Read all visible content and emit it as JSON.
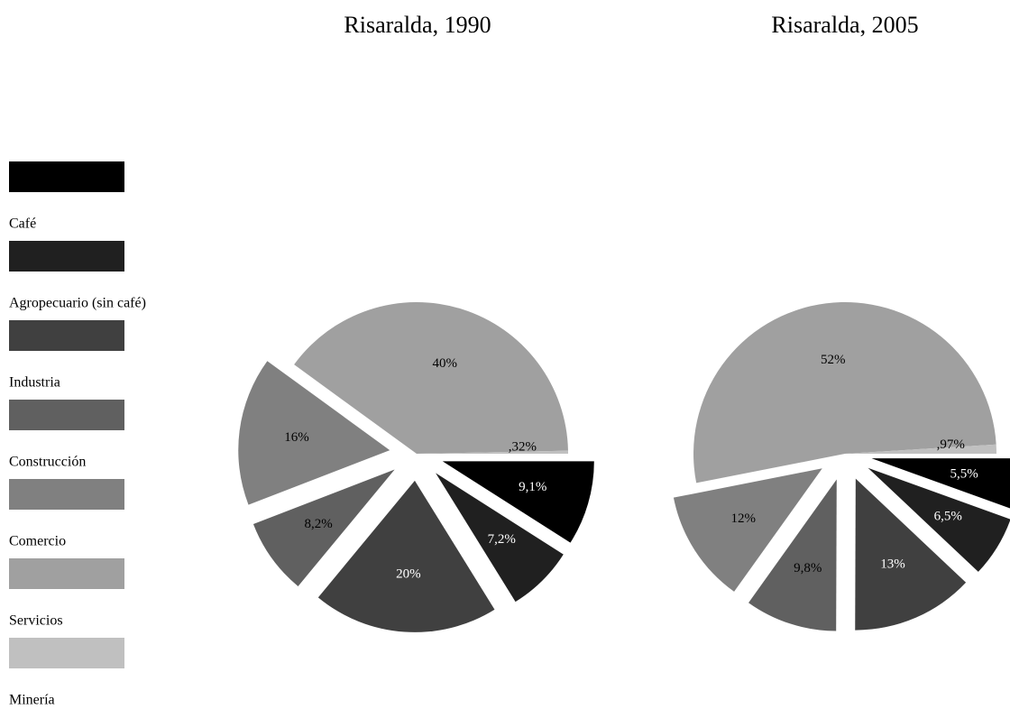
{
  "chart_data": [
    {
      "type": "pie",
      "title": "Risaralda, 1990",
      "categories": [
        "Café",
        "Agropecuario (sin café)",
        "Industria",
        "Construcción",
        "Comercio",
        "Servicios",
        "Minería"
      ],
      "values": [
        9.1,
        7.2,
        20,
        8.2,
        16,
        40,
        0.32
      ],
      "value_labels": [
        "9,1%",
        "7,2%",
        "20%",
        "8,2%",
        "16%",
        "40%",
        ",32%"
      ],
      "colors": [
        "#000000",
        "#202020",
        "#404040",
        "#606060",
        "#808080",
        "#a0a0a0",
        "#c0c0c0"
      ]
    },
    {
      "type": "pie",
      "title": "Risaralda, 2005",
      "categories": [
        "Café",
        "Agropecuario (sin café)",
        "Industria",
        "Construcción",
        "Comercio",
        "Servicios",
        "Minería"
      ],
      "values": [
        5.5,
        6.5,
        13,
        9.8,
        12,
        52,
        0.97
      ],
      "value_labels": [
        "5,5%",
        "6,5%",
        "13%",
        "9,8%",
        "12%",
        "52%",
        ",97%"
      ],
      "colors": [
        "#000000",
        "#202020",
        "#404040",
        "#606060",
        "#808080",
        "#a0a0a0",
        "#c0c0c0"
      ]
    }
  ]
}
